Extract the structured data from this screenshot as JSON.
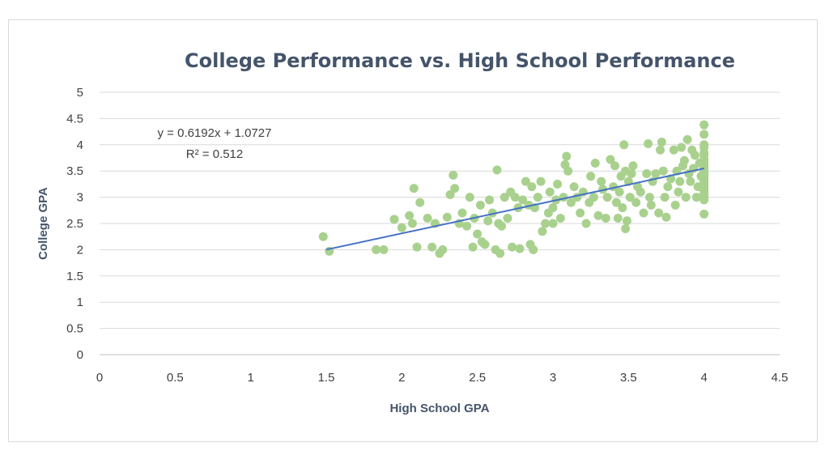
{
  "chart_data": {
    "type": "scatter",
    "title": "College Performance vs. High School Performance",
    "xlabel": "High School GPA",
    "ylabel": "College GPA",
    "xlim": [
      0,
      4.5
    ],
    "ylim": [
      0,
      5
    ],
    "xticks": [
      "0",
      "0.5",
      "1",
      "1.5",
      "2",
      "2.5",
      "3",
      "3.5",
      "4",
      "4.5"
    ],
    "yticks": [
      "0",
      "0.5",
      "1",
      "1.5",
      "2",
      "2.5",
      "3",
      "3.5",
      "4",
      "4.5",
      "5"
    ],
    "grid": "horizontal",
    "legend": "none",
    "colors": {
      "points": "#a9d18e",
      "trendline": "#4472c4"
    },
    "trendline": {
      "slope": 0.6192,
      "intercept": 1.0727,
      "x_range": [
        1.5,
        4.0
      ],
      "equation": "y = 0.6192x + 1.0727",
      "r_squared": "R² = 0.512"
    },
    "points": [
      [
        1.48,
        2.25
      ],
      [
        1.52,
        1.97
      ],
      [
        1.83,
        2.0
      ],
      [
        1.88,
        2.0
      ],
      [
        1.95,
        2.58
      ],
      [
        2.0,
        2.42
      ],
      [
        2.05,
        2.65
      ],
      [
        2.07,
        2.5
      ],
      [
        2.08,
        3.17
      ],
      [
        2.1,
        2.05
      ],
      [
        2.12,
        2.9
      ],
      [
        2.17,
        2.6
      ],
      [
        2.2,
        2.05
      ],
      [
        2.22,
        2.5
      ],
      [
        2.25,
        1.93
      ],
      [
        2.27,
        2.0
      ],
      [
        2.3,
        2.62
      ],
      [
        2.32,
        3.05
      ],
      [
        2.34,
        3.42
      ],
      [
        2.35,
        3.17
      ],
      [
        2.38,
        2.5
      ],
      [
        2.4,
        2.7
      ],
      [
        2.43,
        2.45
      ],
      [
        2.45,
        3.0
      ],
      [
        2.47,
        2.05
      ],
      [
        2.48,
        2.6
      ],
      [
        2.5,
        2.3
      ],
      [
        2.52,
        2.85
      ],
      [
        2.53,
        2.15
      ],
      [
        2.55,
        2.1
      ],
      [
        2.57,
        2.55
      ],
      [
        2.58,
        2.95
      ],
      [
        2.6,
        2.7
      ],
      [
        2.62,
        2.0
      ],
      [
        2.63,
        3.52
      ],
      [
        2.64,
        2.5
      ],
      [
        2.65,
        1.93
      ],
      [
        2.66,
        2.45
      ],
      [
        2.68,
        3.0
      ],
      [
        2.7,
        2.6
      ],
      [
        2.72,
        3.1
      ],
      [
        2.73,
        2.05
      ],
      [
        2.75,
        3.0
      ],
      [
        2.77,
        2.8
      ],
      [
        2.78,
        2.02
      ],
      [
        2.8,
        2.95
      ],
      [
        2.82,
        3.3
      ],
      [
        2.84,
        2.85
      ],
      [
        2.85,
        2.1
      ],
      [
        2.86,
        3.2
      ],
      [
        2.87,
        2.0
      ],
      [
        2.88,
        2.8
      ],
      [
        2.9,
        3.0
      ],
      [
        2.92,
        3.3
      ],
      [
        2.93,
        2.35
      ],
      [
        2.95,
        2.5
      ],
      [
        2.97,
        2.7
      ],
      [
        2.98,
        3.1
      ],
      [
        3.0,
        2.8
      ],
      [
        3.0,
        2.5
      ],
      [
        3.02,
        2.95
      ],
      [
        3.03,
        3.25
      ],
      [
        3.05,
        2.6
      ],
      [
        3.07,
        3.0
      ],
      [
        3.08,
        3.62
      ],
      [
        3.09,
        3.78
      ],
      [
        3.1,
        3.5
      ],
      [
        3.12,
        2.9
      ],
      [
        3.14,
        3.2
      ],
      [
        3.16,
        3.0
      ],
      [
        3.18,
        2.7
      ],
      [
        3.2,
        3.1
      ],
      [
        3.22,
        2.5
      ],
      [
        3.24,
        2.9
      ],
      [
        3.25,
        3.4
      ],
      [
        3.27,
        3.0
      ],
      [
        3.28,
        3.65
      ],
      [
        3.3,
        2.65
      ],
      [
        3.32,
        3.3
      ],
      [
        3.33,
        3.15
      ],
      [
        3.35,
        2.6
      ],
      [
        3.36,
        3.0
      ],
      [
        3.38,
        3.72
      ],
      [
        3.4,
        3.2
      ],
      [
        3.41,
        3.6
      ],
      [
        3.42,
        2.9
      ],
      [
        3.43,
        2.6
      ],
      [
        3.44,
        3.1
      ],
      [
        3.45,
        3.4
      ],
      [
        3.46,
        2.8
      ],
      [
        3.47,
        4.0
      ],
      [
        3.48,
        3.5
      ],
      [
        3.48,
        2.4
      ],
      [
        3.49,
        2.55
      ],
      [
        3.5,
        3.3
      ],
      [
        3.51,
        3.0
      ],
      [
        3.52,
        3.45
      ],
      [
        3.53,
        3.6
      ],
      [
        3.55,
        2.9
      ],
      [
        3.56,
        3.2
      ],
      [
        3.58,
        3.1
      ],
      [
        3.6,
        2.7
      ],
      [
        3.62,
        3.45
      ],
      [
        3.63,
        4.02
      ],
      [
        3.64,
        3.0
      ],
      [
        3.65,
        2.85
      ],
      [
        3.66,
        3.3
      ],
      [
        3.68,
        3.45
      ],
      [
        3.7,
        2.7
      ],
      [
        3.71,
        3.9
      ],
      [
        3.72,
        4.05
      ],
      [
        3.73,
        3.5
      ],
      [
        3.74,
        3.0
      ],
      [
        3.75,
        2.62
      ],
      [
        3.76,
        3.2
      ],
      [
        3.78,
        3.35
      ],
      [
        3.8,
        3.9
      ],
      [
        3.81,
        2.85
      ],
      [
        3.82,
        3.5
      ],
      [
        3.83,
        3.1
      ],
      [
        3.84,
        3.3
      ],
      [
        3.85,
        3.95
      ],
      [
        3.86,
        3.6
      ],
      [
        3.87,
        3.7
      ],
      [
        3.88,
        3.0
      ],
      [
        3.89,
        4.1
      ],
      [
        3.9,
        3.45
      ],
      [
        3.91,
        3.3
      ],
      [
        3.92,
        3.9
      ],
      [
        3.93,
        3.55
      ],
      [
        3.94,
        3.8
      ],
      [
        3.95,
        3.0
      ],
      [
        3.96,
        3.2
      ],
      [
        3.97,
        3.65
      ],
      [
        3.98,
        3.4
      ],
      [
        4.0,
        4.38
      ],
      [
        4.0,
        4.2
      ],
      [
        4.0,
        4.0
      ],
      [
        4.0,
        3.95
      ],
      [
        4.0,
        3.85
      ],
      [
        4.0,
        3.8
      ],
      [
        4.0,
        3.72
      ],
      [
        4.0,
        3.65
      ],
      [
        4.0,
        3.6
      ],
      [
        4.0,
        3.55
      ],
      [
        4.0,
        3.5
      ],
      [
        4.0,
        3.45
      ],
      [
        4.0,
        3.4
      ],
      [
        4.0,
        3.35
      ],
      [
        4.0,
        3.3
      ],
      [
        4.0,
        3.25
      ],
      [
        4.0,
        3.2
      ],
      [
        4.0,
        3.15
      ],
      [
        4.0,
        3.1
      ],
      [
        4.0,
        3.05
      ],
      [
        4.0,
        3.0
      ],
      [
        4.0,
        2.95
      ],
      [
        4.0,
        2.68
      ]
    ]
  }
}
